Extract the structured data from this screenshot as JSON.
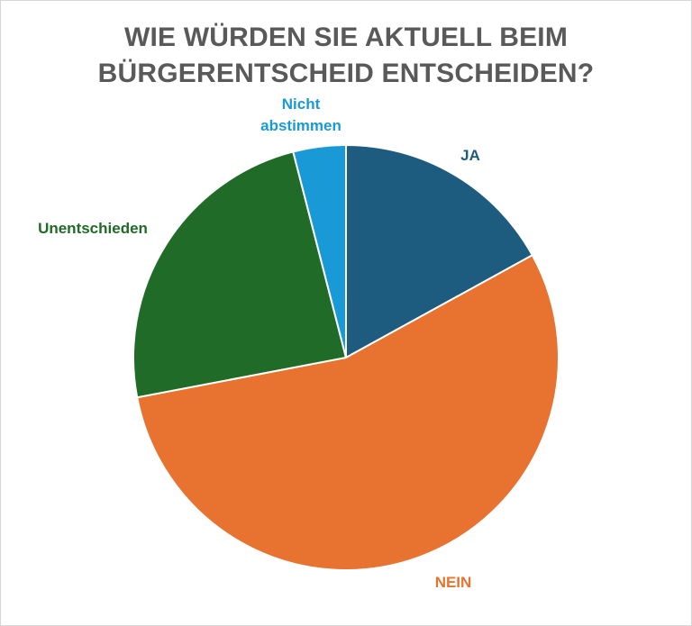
{
  "chart_data": {
    "type": "pie",
    "title_lines": [
      "WIE WÜRDEN SIE AKTUELL BEIM",
      "BÜRGERENTSCHEID ENTSCHEIDEN?"
    ],
    "slices": [
      {
        "label": "JA",
        "value": 17,
        "color": "#1d5c7e"
      },
      {
        "label": "NEIN",
        "value": 55,
        "color": "#e87330"
      },
      {
        "label": "Unentschieden",
        "value": 24,
        "color": "#1f6b27"
      },
      {
        "label": [
          "Nicht",
          "abstimmen"
        ],
        "value": 4,
        "color": "#199ad6"
      }
    ]
  }
}
